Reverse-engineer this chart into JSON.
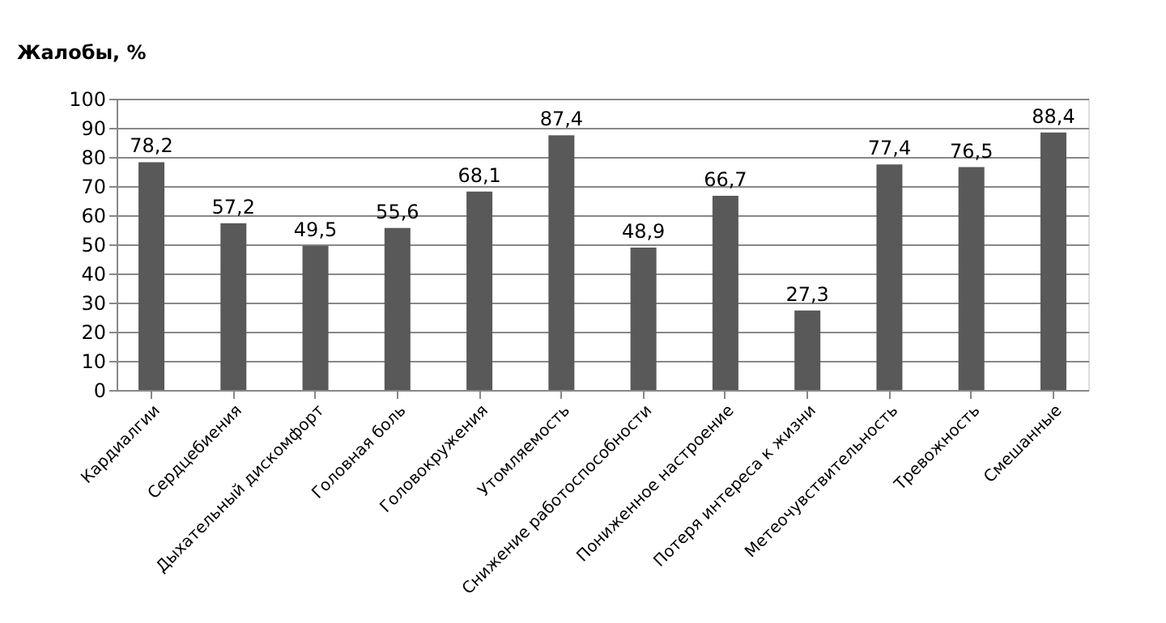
{
  "chart_data": {
    "type": "bar",
    "ylabel": "Жалобы, %",
    "categories": [
      "Кардиалгии",
      "Сердцебиения",
      "Дыхательный дискомфорт",
      "Головная боль",
      "Головокружения",
      "Утомляемость",
      "Снижение работоспособности",
      "Пониженное  настроение",
      "Потеря интереса к жизни",
      "Метеочувствительность",
      "Тревожность",
      "Смешанные"
    ],
    "values": [
      78.2,
      57.2,
      49.5,
      55.6,
      68.1,
      87.4,
      48.9,
      66.7,
      27.3,
      77.4,
      76.5,
      88.4
    ],
    "value_labels": [
      "78,2",
      "57,2",
      "49,5",
      "55,6",
      "68,1",
      "87,4",
      "48,9",
      "66,7",
      "27,3",
      "77,4",
      "76,5",
      "88,4"
    ],
    "color": "#595959",
    "ylim": [
      0,
      100
    ],
    "yticks": [
      0,
      10,
      20,
      30,
      40,
      50,
      60,
      70,
      80,
      90,
      100
    ],
    "grid": "y"
  }
}
